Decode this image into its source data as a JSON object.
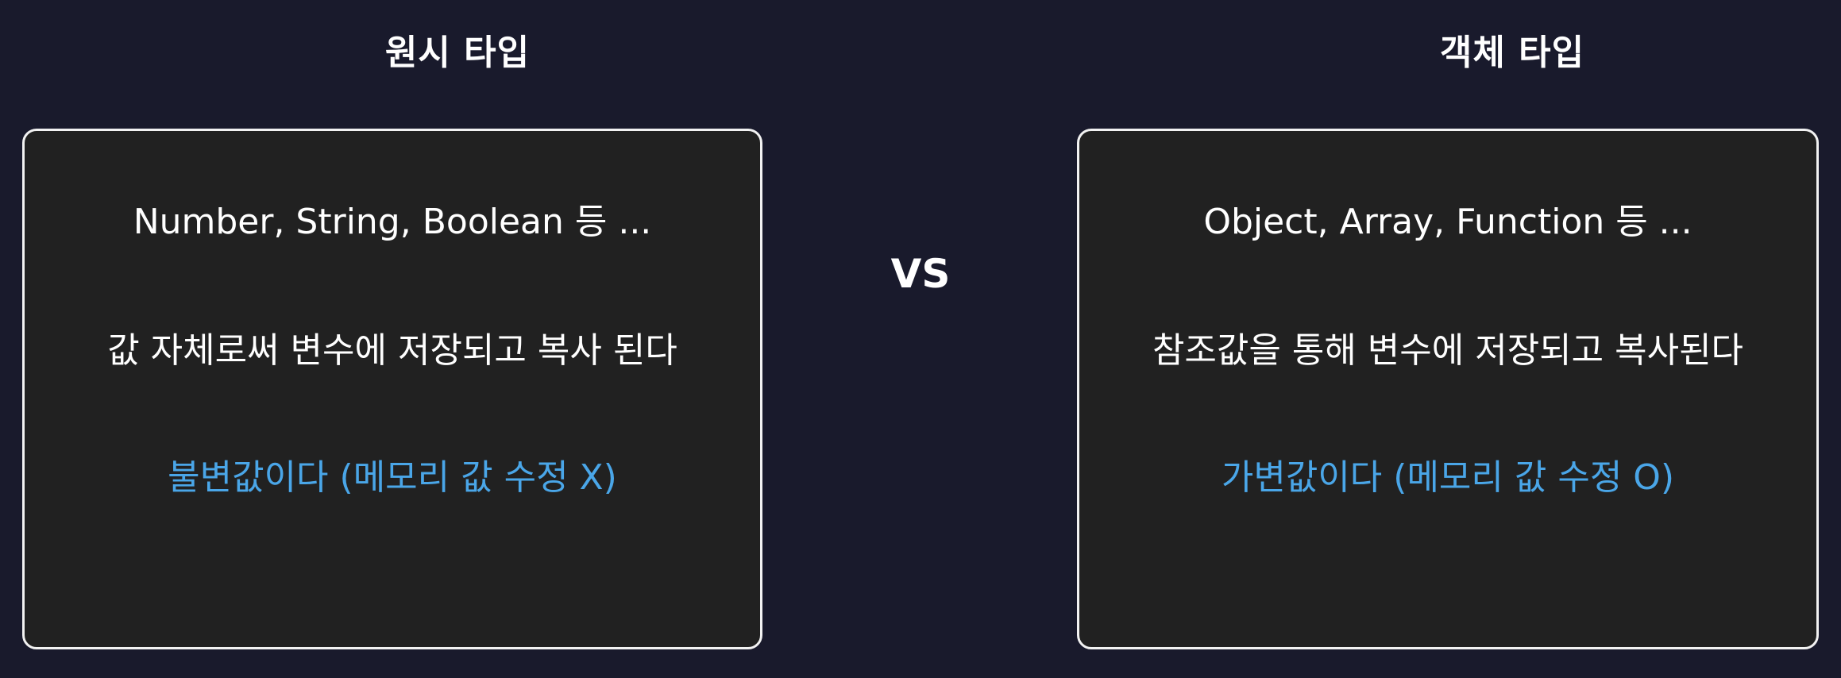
{
  "left": {
    "title": "원시 타입",
    "types": "Number, String, Boolean 등 ...",
    "storage": "값 자체로써 변수에 저장되고 복사 된다",
    "mutability": "불변값이다 (메모리 값 수정 X)"
  },
  "vs_label": "VS",
  "right": {
    "title": "객체 타입",
    "types": "Object, Array, Function 등 ...",
    "storage": "참조값을 통해 변수에 저장되고 복사된다",
    "mutability": "가변값이다 (메모리 값 수정 O)"
  },
  "colors": {
    "background": "#191a2c",
    "card": "#212121",
    "card_border": "#f2f2f2",
    "text": "#ffffff",
    "accent": "#4aa6e8"
  }
}
